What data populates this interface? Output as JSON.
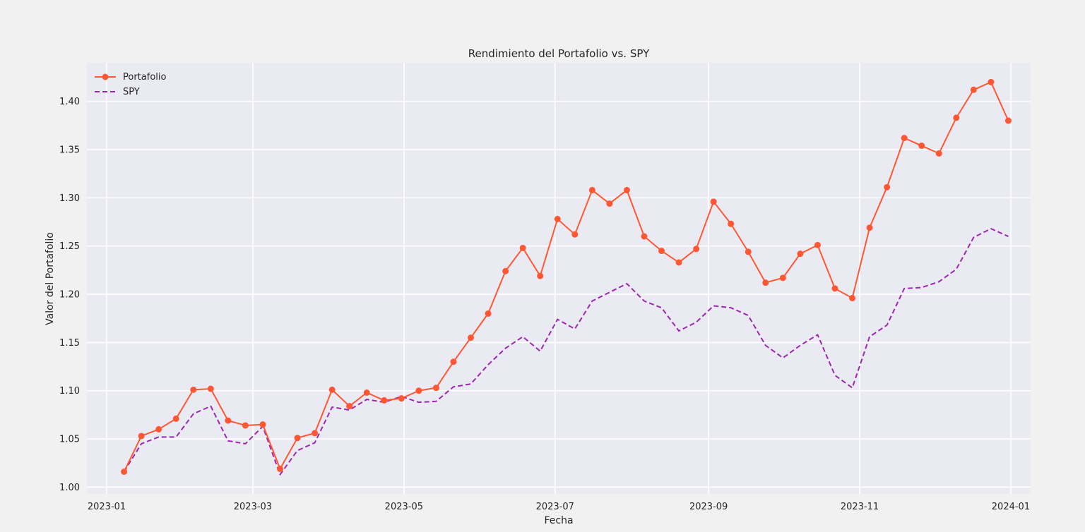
{
  "chart_data": {
    "type": "line",
    "title": "Rendimiento del Portafolio vs. SPY",
    "xlabel": "Fecha",
    "ylabel": "Valor del Portafolio",
    "xlim": [
      "2022-12-24",
      "2024-01-09"
    ],
    "ylim": [
      0.993,
      1.44
    ],
    "grid": true,
    "legend_position": "top-left",
    "x_ticks": [
      "2023-01",
      "2023-03",
      "2023-05",
      "2023-07",
      "2023-09",
      "2023-11",
      "2024-01"
    ],
    "y_ticks": [
      "1.00",
      "1.05",
      "1.10",
      "1.15",
      "1.20",
      "1.25",
      "1.30",
      "1.35",
      "1.40"
    ],
    "x": [
      "2023-01-08",
      "2023-01-15",
      "2023-01-22",
      "2023-01-29",
      "2023-02-05",
      "2023-02-12",
      "2023-02-19",
      "2023-02-26",
      "2023-03-05",
      "2023-03-12",
      "2023-03-19",
      "2023-03-26",
      "2023-04-02",
      "2023-04-09",
      "2023-04-16",
      "2023-04-23",
      "2023-04-30",
      "2023-05-07",
      "2023-05-14",
      "2023-05-21",
      "2023-05-28",
      "2023-06-04",
      "2023-06-11",
      "2023-06-18",
      "2023-06-25",
      "2023-07-02",
      "2023-07-09",
      "2023-07-16",
      "2023-07-23",
      "2023-07-30",
      "2023-08-06",
      "2023-08-13",
      "2023-08-20",
      "2023-08-27",
      "2023-09-03",
      "2023-09-10",
      "2023-09-17",
      "2023-09-24",
      "2023-10-01",
      "2023-10-08",
      "2023-10-15",
      "2023-10-22",
      "2023-10-29",
      "2023-11-05",
      "2023-11-12",
      "2023-11-19",
      "2023-11-26",
      "2023-12-03",
      "2023-12-10",
      "2023-12-17",
      "2023-12-24",
      "2023-12-31"
    ],
    "series": [
      {
        "name": "Portafolio",
        "color": "#ff5733",
        "style": "solid-markers",
        "values": [
          1.016,
          1.053,
          1.06,
          1.071,
          1.101,
          1.102,
          1.069,
          1.064,
          1.065,
          1.019,
          1.051,
          1.056,
          1.101,
          1.084,
          1.098,
          1.09,
          1.092,
          1.1,
          1.103,
          1.13,
          1.155,
          1.18,
          1.224,
          1.248,
          1.219,
          1.278,
          1.262,
          1.308,
          1.294,
          1.308,
          1.26,
          1.245,
          1.233,
          1.247,
          1.296,
          1.273,
          1.244,
          1.212,
          1.217,
          1.242,
          1.251,
          1.206,
          1.196,
          1.269,
          1.311,
          1.362,
          1.354,
          1.346,
          1.383,
          1.412,
          1.42,
          1.38
        ]
      },
      {
        "name": "SPY",
        "color": "#9c27b0",
        "style": "dashed",
        "values": [
          1.016,
          1.045,
          1.052,
          1.052,
          1.076,
          1.084,
          1.048,
          1.045,
          1.063,
          1.013,
          1.038,
          1.046,
          1.083,
          1.08,
          1.091,
          1.088,
          1.094,
          1.088,
          1.089,
          1.104,
          1.107,
          1.127,
          1.144,
          1.156,
          1.141,
          1.174,
          1.164,
          1.193,
          1.202,
          1.211,
          1.193,
          1.186,
          1.162,
          1.171,
          1.188,
          1.186,
          1.178,
          1.147,
          1.134,
          1.147,
          1.158,
          1.116,
          1.103,
          1.156,
          1.168,
          1.206,
          1.207,
          1.213,
          1.226,
          1.259,
          1.268,
          1.26
        ]
      }
    ]
  }
}
